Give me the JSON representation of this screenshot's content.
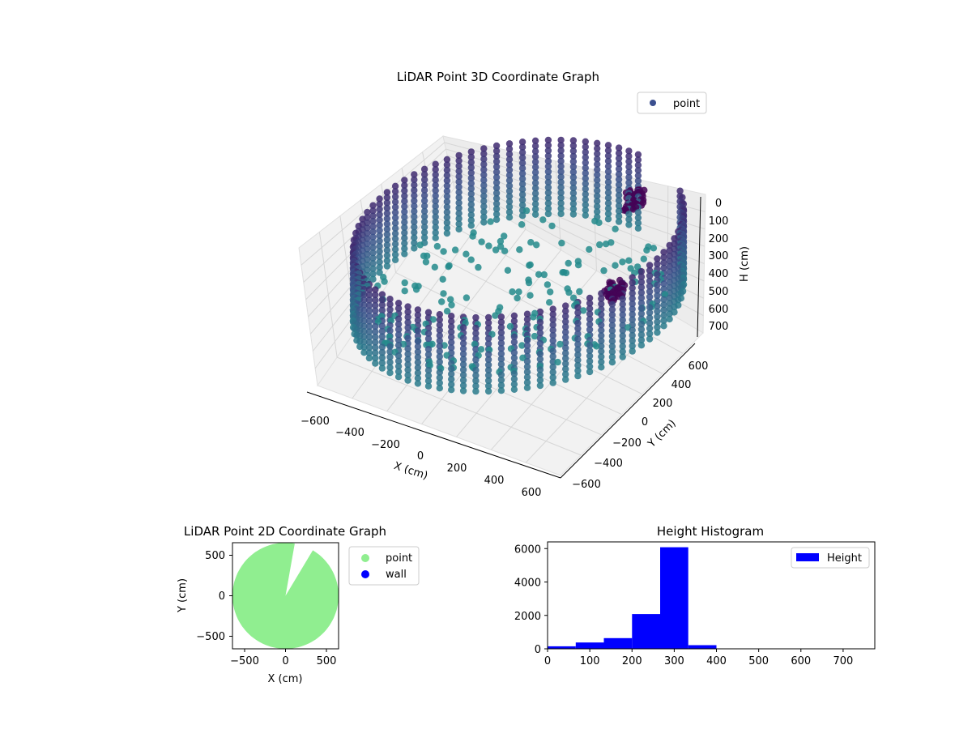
{
  "chart_data": [
    {
      "type": "scatter3d",
      "title": "LiDAR Point 3D Coordinate Graph",
      "xlabel": "X (cm)",
      "ylabel": "Y (cm)",
      "zlabel": "H (cm)",
      "x_ticks": [
        "−600",
        "−400",
        "−200",
        "0",
        "200",
        "400",
        "600"
      ],
      "y_ticks": [
        "−600",
        "−400",
        "−200",
        "0",
        "200",
        "400",
        "600"
      ],
      "z_ticks": [
        "0",
        "100",
        "200",
        "300",
        "400",
        "500",
        "600",
        "700"
      ],
      "xlim": [
        -650,
        650
      ],
      "ylim": [
        -650,
        650
      ],
      "zlim": [
        0,
        750
      ],
      "z_inverted": true,
      "legend": {
        "position": "top-right",
        "entries": [
          {
            "label": "point",
            "color": "#3b4f8f"
          }
        ]
      },
      "colormap": "viridis",
      "series": [
        {
          "name": "point",
          "shape": "cylindrical room scan",
          "radius_cm": 620,
          "height_range_cm": [
            0,
            380
          ],
          "angular_gap_deg": [
            55,
            85
          ],
          "clusters": [
            {
              "x": 150,
              "y": 480,
              "h": [
                50,
                150
              ]
            },
            {
              "x": 350,
              "y": 150,
              "h": [
                240,
                320
              ]
            }
          ]
        }
      ]
    },
    {
      "type": "scatter",
      "title": "LiDAR Point 2D Coordinate Graph",
      "xlabel": "X (cm)",
      "ylabel": "Y (cm)",
      "x_ticks": [
        "−500",
        "0",
        "500"
      ],
      "y_ticks": [
        "−500",
        "0",
        "500"
      ],
      "xlim": [
        -650,
        650
      ],
      "ylim": [
        -650,
        650
      ],
      "legend": {
        "position": "outside-right",
        "entries": [
          {
            "label": "point",
            "color": "#90ee90"
          },
          {
            "label": "wall",
            "color": "#0000ff"
          }
        ]
      },
      "series": [
        {
          "name": "point",
          "color": "#90ee90",
          "shape": "filled disc",
          "radius_cm": 650,
          "angular_gap_deg": [
            60,
            80
          ]
        },
        {
          "name": "wall",
          "color": "#0000ff",
          "points": []
        }
      ]
    },
    {
      "type": "bar",
      "title": "Height Histogram",
      "xlabel": "",
      "ylabel": "",
      "x_ticks": [
        "0",
        "100",
        "200",
        "300",
        "400",
        "500",
        "600",
        "700"
      ],
      "y_ticks": [
        "0",
        "2000",
        "4000",
        "6000"
      ],
      "xlim": [
        0,
        775
      ],
      "ylim": [
        0,
        6400
      ],
      "legend": {
        "position": "top-right",
        "entries": [
          {
            "label": "Height",
            "color": "#0000ff"
          }
        ]
      },
      "bin_edges": [
        0,
        66.7,
        133.3,
        200,
        266.7,
        333.3,
        400
      ],
      "series": [
        {
          "name": "Height",
          "color": "#0000ff",
          "values": [
            150,
            380,
            640,
            2080,
            6080,
            220
          ]
        }
      ]
    }
  ]
}
